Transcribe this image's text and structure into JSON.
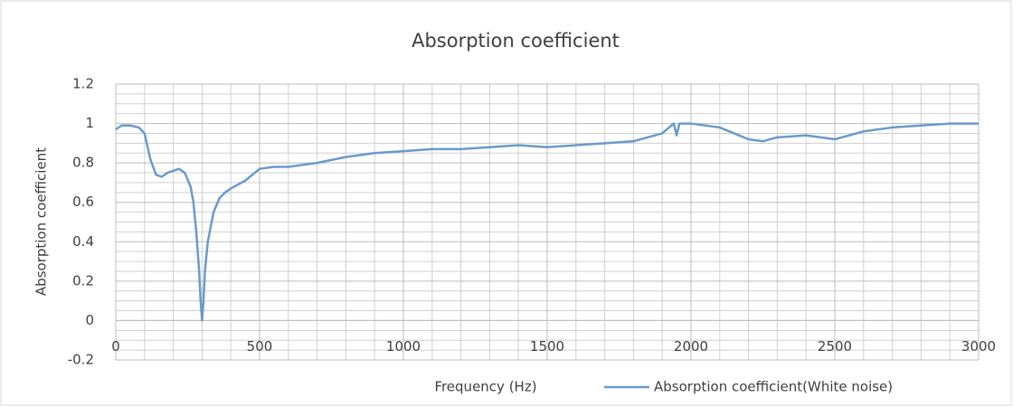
{
  "chart_data": {
    "type": "line",
    "title": "Absorption coefficient",
    "x_label": "Frequency (Hz)",
    "y_label": "Absorption coefficient",
    "x": [
      0,
      20,
      50,
      80,
      100,
      120,
      140,
      160,
      180,
      200,
      220,
      240,
      260,
      270,
      280,
      290,
      295,
      300,
      305,
      310,
      320,
      340,
      360,
      380,
      400,
      450,
      500,
      550,
      600,
      700,
      800,
      900,
      1000,
      1100,
      1200,
      1300,
      1400,
      1500,
      1600,
      1700,
      1800,
      1900,
      1940,
      1950,
      1960,
      2000,
      2100,
      2150,
      2200,
      2250,
      2300,
      2400,
      2500,
      2600,
      2700,
      2800,
      2900,
      3000
    ],
    "series": [
      {
        "name": "Absorption coefficient(White noise)",
        "color": "#6a9bc9",
        "values": [
          0.97,
          0.99,
          0.99,
          0.98,
          0.95,
          0.82,
          0.74,
          0.73,
          0.75,
          0.76,
          0.77,
          0.75,
          0.68,
          0.6,
          0.45,
          0.25,
          0.1,
          0.0,
          0.1,
          0.25,
          0.4,
          0.55,
          0.62,
          0.65,
          0.67,
          0.71,
          0.77,
          0.78,
          0.78,
          0.8,
          0.83,
          0.85,
          0.86,
          0.87,
          0.87,
          0.88,
          0.89,
          0.88,
          0.89,
          0.9,
          0.91,
          0.95,
          1.0,
          0.94,
          1.0,
          1.0,
          0.98,
          0.95,
          0.92,
          0.91,
          0.93,
          0.94,
          0.92,
          0.96,
          0.98,
          0.99,
          1.0,
          1.0
        ]
      }
    ],
    "xlim": [
      0,
      3000
    ],
    "xticks": [
      0,
      500,
      1000,
      1500,
      2000,
      2500,
      3000
    ],
    "x_minor_ticks": [
      100,
      200,
      300,
      400,
      600,
      700,
      800,
      900,
      1100,
      1200,
      1300,
      1400,
      1600,
      1700,
      1800,
      1900,
      2100,
      2200,
      2300,
      2400,
      2600,
      2700,
      2800,
      2900
    ],
    "ylim": [
      -0.2,
      1.2
    ],
    "yticks": [
      -0.2,
      0,
      0.2,
      0.4,
      0.6,
      0.8,
      1,
      1.2
    ],
    "y_minor_ticks": [
      -0.15,
      -0.1,
      -0.05,
      0.05,
      0.1,
      0.15,
      0.25,
      0.3,
      0.35,
      0.45,
      0.5,
      0.55,
      0.65,
      0.7,
      0.75,
      0.85,
      0.9,
      0.95,
      1.05,
      1.1,
      1.15
    ],
    "grid": true,
    "legend": "bottom"
  }
}
